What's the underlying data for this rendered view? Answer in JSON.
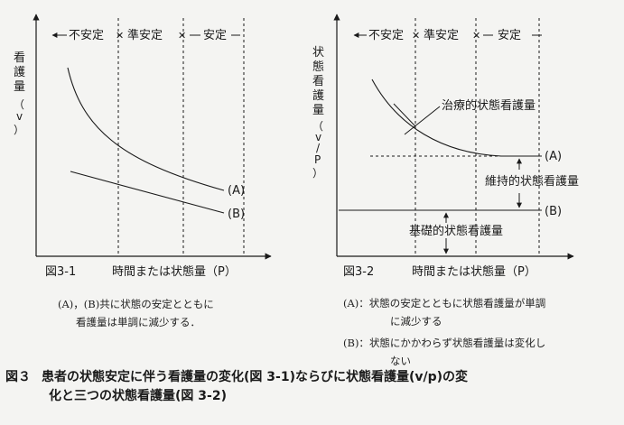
{
  "figure1": {
    "stages": [
      "不安定",
      "準安定",
      "安定"
    ],
    "stage_sep": "✕",
    "y_label_chars": [
      "看",
      "護",
      "量",
      "（",
      "v",
      "）"
    ],
    "x_label": "時間または状態量（P）",
    "sub_label": "図3-1",
    "curve_a": "(A)",
    "curve_b": "(B)",
    "note_lines": [
      "(A)，(B)共に状態の安定とともに",
      "看護量は単調に減少する．"
    ]
  },
  "figure2": {
    "stages": [
      "不安定",
      "準安定",
      "安定"
    ],
    "stage_sep": "✕",
    "y_label_chars": [
      "状",
      "態",
      "看",
      "護",
      "量",
      "（",
      "v",
      "/",
      "P",
      "）"
    ],
    "x_label": "時間または状態量（P）",
    "sub_label": "図3-2",
    "label_a": "(A)",
    "label_b": "(B)",
    "therapeutic": "治療的状態看護量",
    "maintenance": "維持的状態看護量",
    "basic": "基礎的状態看護量",
    "note_a_head": "(A)：",
    "note_a_lines": [
      "状態の安定とともに状態看護量が単調",
      "に減少する"
    ],
    "note_b_head": "(B)：",
    "note_b_lines": [
      "状態にかかわらず状態看護量は変化し",
      "ない"
    ]
  },
  "caption": {
    "number": "図３",
    "line1": "患者の状態安定に伴う看護量の変化(図 3-1)ならびに状態看護量(v/p)の変",
    "line2": "化と三つの状態看護量(図 3-2)"
  }
}
